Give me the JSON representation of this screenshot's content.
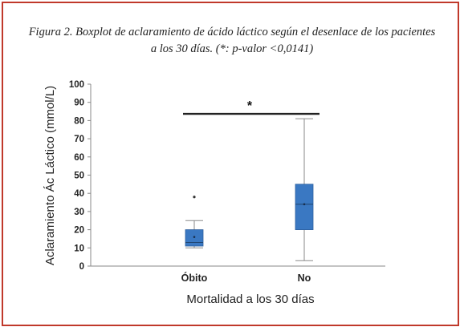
{
  "caption": {
    "line1": "Figura 2. Boxplot de aclaramiento de ácido láctico según el desenlace de los pacientes",
    "line2": "a los 30 días. (*: p-valor <0,0141)"
  },
  "colors": {
    "frame": "#c0392b",
    "box": "#3a78c2",
    "whisker": "#8a8a8a",
    "axis": "#888888"
  },
  "chart_data": {
    "type": "boxplot",
    "xlabel": "Mortalidad a los 30 días",
    "ylabel": "Aclaramiento Ác Láctico (mmol/L)",
    "ylim": [
      0,
      100
    ],
    "yticks": [
      "0",
      "10",
      "20",
      "30",
      "40",
      "50",
      "60",
      "70",
      "80",
      "90",
      "100"
    ],
    "categories": [
      "Óbito",
      "No"
    ],
    "boxes": [
      {
        "category": "Óbito",
        "min": 10,
        "q1": 11,
        "median": 13,
        "mean": 16,
        "q3": 20,
        "max": 25,
        "outliers": [
          38
        ]
      },
      {
        "category": "No",
        "min": 3,
        "q1": 20,
        "median": 34,
        "mean": 34,
        "q3": 45,
        "max": 81,
        "outliers": []
      }
    ],
    "significance": {
      "label": "*",
      "y": 85
    },
    "grid": false
  }
}
